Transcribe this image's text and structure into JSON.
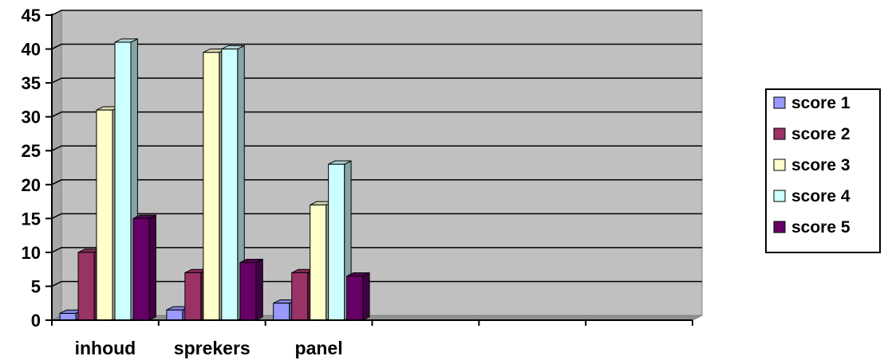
{
  "chart_data": {
    "type": "bar",
    "categories": [
      "inhoud",
      "sprekers",
      "panel",
      "",
      "",
      ""
    ],
    "series": [
      {
        "name": "score 1",
        "values": [
          1,
          1.5,
          2.5,
          0,
          0,
          0
        ],
        "color": "#9999ff"
      },
      {
        "name": "score 2",
        "values": [
          10,
          7,
          7,
          0,
          0,
          0
        ],
        "color": "#993366"
      },
      {
        "name": "score 3",
        "values": [
          31,
          39.5,
          17,
          0,
          0,
          0
        ],
        "color": "#ffffcc"
      },
      {
        "name": "score 4",
        "values": [
          41,
          40,
          23,
          0,
          0,
          0
        ],
        "color": "#ccffff"
      },
      {
        "name": "score 5",
        "values": [
          15,
          8.5,
          6.5,
          0,
          0,
          0
        ],
        "color": "#660066"
      }
    ],
    "yticks": [
      "0",
      "5",
      "10",
      "15",
      "20",
      "25",
      "30",
      "35",
      "40",
      "45"
    ],
    "ylim": [
      0,
      45
    ],
    "grid": true,
    "legend_position": "right",
    "plot_background": "#c0c0c0"
  }
}
